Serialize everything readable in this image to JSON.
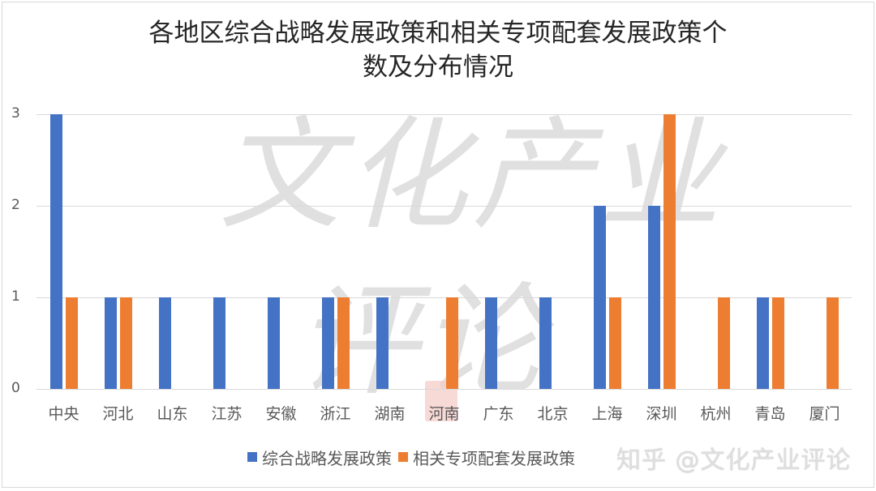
{
  "chart_data": {
    "type": "bar",
    "title": "各地区综合战略发展政策和相关专项配套发展政策个数及分布情况",
    "title_lines": [
      "各地区综合战略发展政策和相关专项配套发展政策个",
      "数及分布情况"
    ],
    "categories": [
      "中央",
      "河北",
      "山东",
      "江苏",
      "安徽",
      "浙江",
      "湖南",
      "河南",
      "广东",
      "北京",
      "上海",
      "深圳",
      "杭州",
      "青岛",
      "厦门"
    ],
    "series": [
      {
        "name": "综合战略发展政策",
        "color": "#4472c4",
        "values": [
          3,
          1,
          1,
          1,
          1,
          1,
          1,
          0,
          1,
          1,
          2,
          2,
          0,
          1,
          0
        ]
      },
      {
        "name": "相关专项配套发展政策",
        "color": "#ed7d31",
        "values": [
          1,
          1,
          0,
          0,
          0,
          1,
          0,
          1,
          0,
          0,
          1,
          3,
          1,
          1,
          1
        ]
      }
    ],
    "xlabel": "",
    "ylabel": "",
    "ylim": [
      0,
      3
    ],
    "yticks": [
      "0",
      "1",
      "2",
      "3"
    ],
    "grid": true,
    "legend_position": "bottom"
  },
  "watermarks": {
    "line1": "文化产业",
    "line2": "评论",
    "source": "知乎 @文化产业评论"
  }
}
